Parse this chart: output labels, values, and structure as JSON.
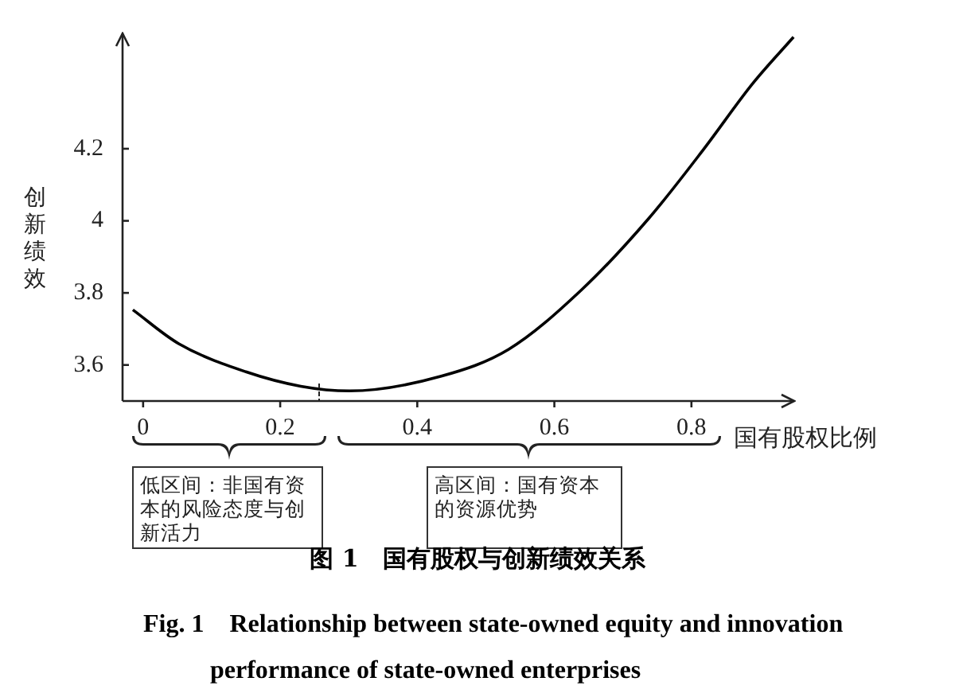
{
  "chart_data": {
    "type": "line",
    "title": "图 1　国有股权与创新绩效关系",
    "subtitle": "Fig. 1　Relationship between state-owned equity and innovation performance of state-owned enterprises",
    "xlabel": "国有股权比例",
    "ylabel": "创新绩效",
    "annotations": [
      "低区间：非国有资本的风险态度与创新活力",
      "高区间：国有资本的资源优势"
    ],
    "xlim": [
      -0.03,
      0.95
    ],
    "ylim": [
      3.5,
      4.52
    ],
    "xticks": [
      0,
      0.2,
      0.4,
      0.6,
      0.8
    ],
    "yticks": [
      3.6,
      3.8,
      4,
      4.2
    ],
    "grid": false,
    "marker": "none",
    "line_style": "solid",
    "series": [
      {
        "color": "#000000",
        "x": [
          -0.015,
          0.052,
          0.15,
          0.23,
          0.301,
          0.435,
          0.533,
          0.64,
          0.737,
          0.818,
          0.889,
          0.949
        ],
        "values": [
          3.753,
          3.659,
          3.581,
          3.541,
          3.528,
          3.569,
          3.643,
          3.809,
          4.005,
          4.199,
          4.38,
          4.51
        ]
      }
    ]
  }
}
